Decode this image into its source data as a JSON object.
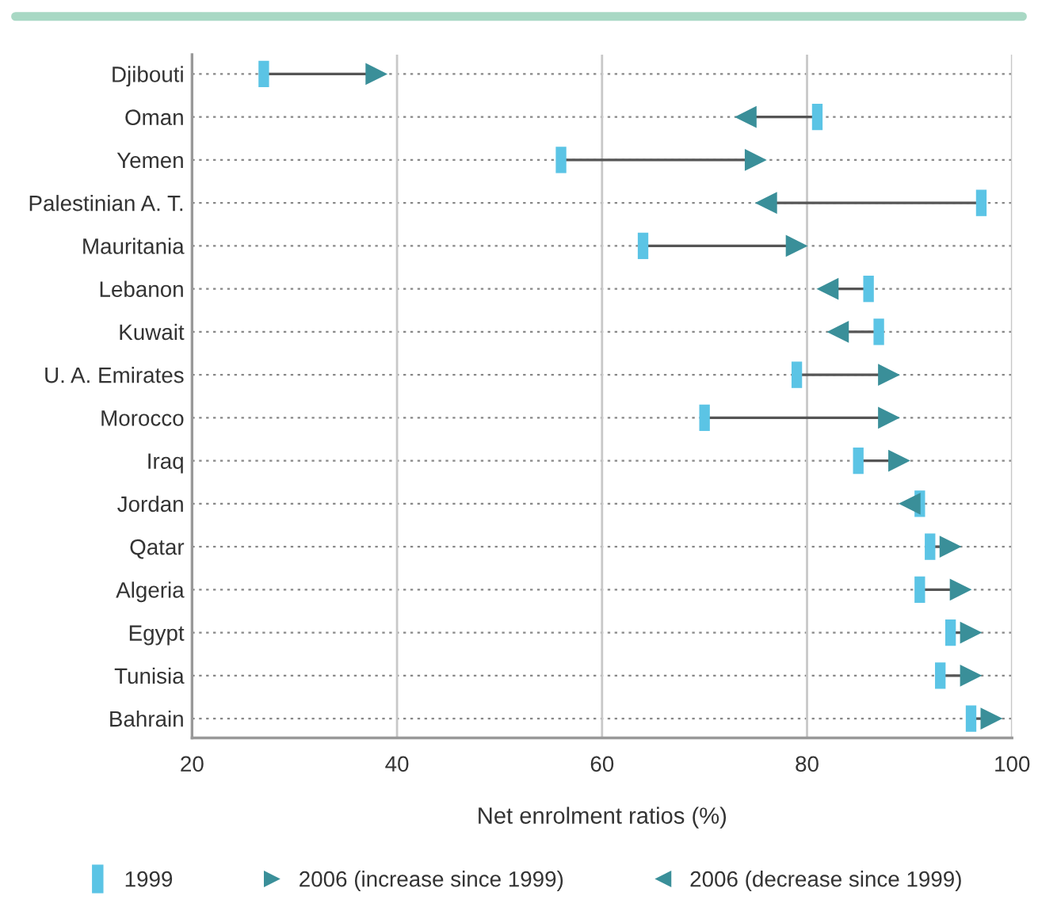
{
  "chart_data": {
    "type": "scatter",
    "orientation": "horizontal",
    "categories": [
      "Djibouti",
      "Oman",
      "Yemen",
      "Palestinian A. T.",
      "Mauritania",
      "Lebanon",
      "Kuwait",
      "U. A. Emirates",
      "Morocco",
      "Iraq",
      "Jordan",
      "Qatar",
      "Algeria",
      "Egypt",
      "Tunisia",
      "Bahrain"
    ],
    "series": [
      {
        "name": "1999",
        "color": "#5bc4e5",
        "values": [
          27,
          81,
          56,
          97,
          64,
          86,
          87,
          79,
          70,
          85,
          91,
          92,
          91,
          94,
          93,
          96
        ]
      },
      {
        "name": "2006 (increase since 1999)",
        "color": "#3a8f99",
        "values": [
          38,
          null,
          75,
          null,
          79,
          null,
          null,
          88,
          88,
          89,
          null,
          94,
          95,
          96,
          96,
          98
        ]
      },
      {
        "name": "2006 (decrease since 1999)",
        "color": "#3a8f99",
        "values": [
          null,
          74,
          null,
          76,
          null,
          82,
          83,
          null,
          null,
          null,
          90,
          null,
          null,
          null,
          null,
          null
        ]
      }
    ],
    "xlabel": "Net enrolment ratios (%)",
    "xlim": [
      20,
      100
    ],
    "xticks": [
      20,
      40,
      60,
      80,
      100
    ],
    "grid": true,
    "legend": "bottom"
  }
}
